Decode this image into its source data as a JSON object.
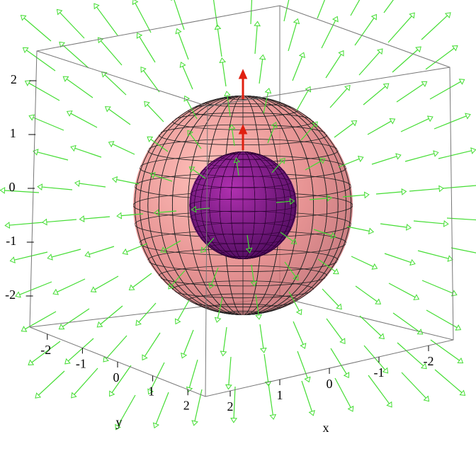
{
  "chart_data": {
    "type": "vector-field-3d",
    "xlabel": "x",
    "ylabel": "y",
    "xlim": [
      2.5,
      -2.5
    ],
    "xticks": [
      2,
      1,
      0,
      -1,
      -2
    ],
    "ylim": [
      -2.5,
      2.5
    ],
    "yticks": [
      -2,
      -1,
      0,
      1,
      2
    ],
    "zlim": [
      -2.5,
      2.5
    ],
    "zticks": [
      2,
      1,
      0,
      -1,
      -2
    ]
  }
}
